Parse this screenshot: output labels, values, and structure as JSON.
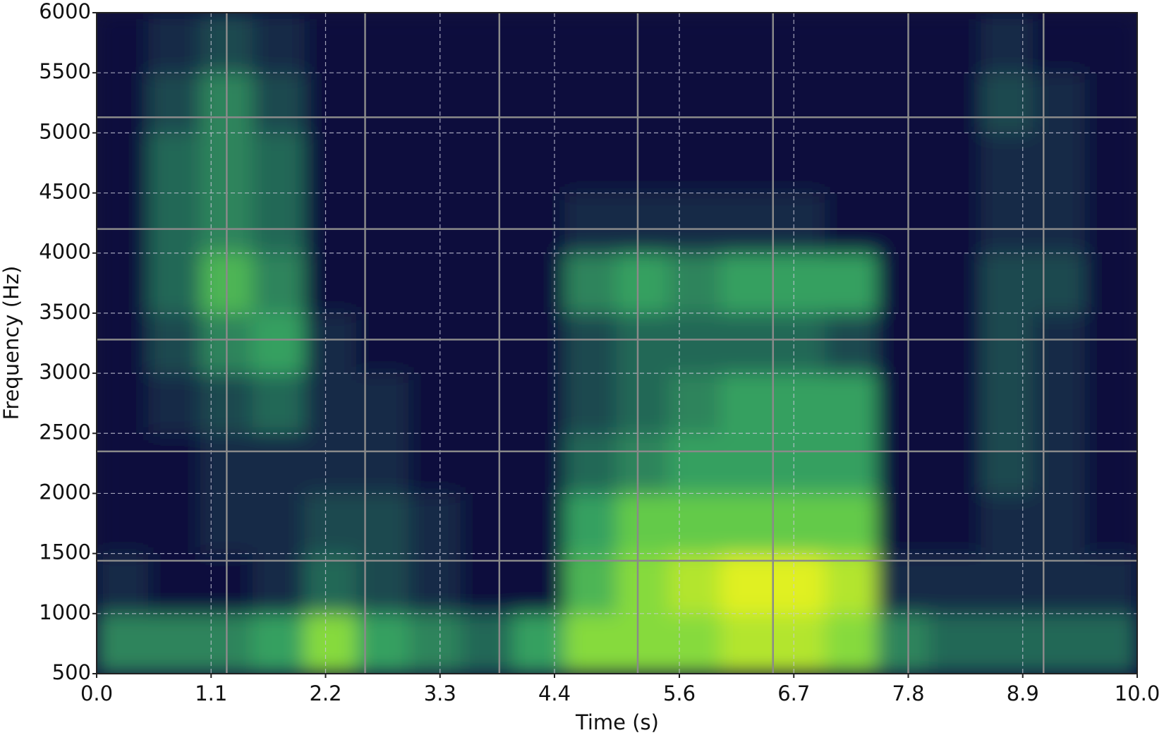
{
  "chart_data": {
    "type": "heatmap",
    "xlabel": "Time (s)",
    "ylabel": "Frequency (Hz)",
    "xlim": [
      0,
      10
    ],
    "ylim": [
      500,
      6000
    ],
    "xticks": [
      {
        "value": 0,
        "label": "0.0"
      },
      1.1,
      2.2,
      3.3,
      4.4,
      5.6,
      6.7,
      7.8,
      8.9,
      {
        "value": 10,
        "label": "10.0"
      }
    ],
    "yticks": [
      500,
      1000,
      1500,
      2000,
      2500,
      3000,
      3500,
      4000,
      4500,
      5000,
      5500,
      6000
    ],
    "grid": true,
    "extra_gridlines": {
      "x": [
        1.25,
        2.58,
        3.87,
        5.2,
        6.5,
        7.8,
        9.1
      ],
      "y": [
        1440,
        2350,
        3280,
        4200,
        5130
      ]
    },
    "x_bins": [
      0,
      0.5,
      1,
      1.5,
      2,
      2.5,
      3,
      3.5,
      4,
      4.5,
      5,
      5.5,
      6,
      6.5,
      7,
      7.5,
      8,
      8.5,
      9,
      9.5,
      10
    ],
    "y_bins": [
      500,
      1000,
      1500,
      2000,
      2500,
      3000,
      3500,
      4000,
      4500,
      5000,
      5500,
      6000
    ],
    "zlim": [
      0,
      10
    ],
    "colormap": [
      "#0c0c3c",
      "#1f5a55",
      "#36a060",
      "#6fd445",
      "#e0f020"
    ],
    "values": [
      [
        4,
        4,
        4,
        5,
        8,
        5,
        4,
        3,
        5,
        8,
        8,
        8,
        9,
        9,
        8,
        4,
        3,
        3,
        3,
        3
      ],
      [
        1,
        0,
        0,
        1,
        3,
        2,
        1,
        0,
        0,
        6,
        8,
        9,
        10,
        10,
        9,
        1,
        1,
        1,
        1,
        1
      ],
      [
        0,
        0,
        1,
        1,
        2,
        2,
        1,
        0,
        0,
        5,
        7,
        7,
        7,
        7,
        7,
        0,
        0,
        1,
        1,
        0
      ],
      [
        0,
        0,
        1,
        1,
        1,
        1,
        0,
        0,
        0,
        3,
        4,
        5,
        5,
        5,
        5,
        0,
        0,
        2,
        1,
        0
      ],
      [
        0,
        1,
        2,
        3,
        1,
        1,
        0,
        0,
        0,
        2,
        3,
        4,
        5,
        5,
        5,
        0,
        0,
        2,
        1,
        0
      ],
      [
        0,
        2,
        4,
        5,
        1,
        0,
        0,
        0,
        0,
        2,
        3,
        3,
        3,
        3,
        2,
        0,
        0,
        2,
        1,
        0
      ],
      [
        0,
        3,
        6,
        4,
        0,
        0,
        0,
        0,
        0,
        4,
        5,
        4,
        5,
        5,
        5,
        0,
        0,
        2,
        2,
        0
      ],
      [
        0,
        3,
        4,
        3,
        0,
        0,
        0,
        0,
        0,
        1,
        1,
        1,
        1,
        1,
        0,
        0,
        0,
        1,
        1,
        0
      ],
      [
        0,
        3,
        4,
        3,
        0,
        0,
        0,
        0,
        0,
        0,
        0,
        0,
        0,
        0,
        0,
        0,
        0,
        1,
        1,
        0
      ],
      [
        0,
        2,
        4,
        2,
        0,
        0,
        0,
        0,
        0,
        0,
        0,
        0,
        0,
        0,
        0,
        0,
        0,
        2,
        1,
        0
      ],
      [
        0,
        1,
        2,
        1,
        0,
        0,
        0,
        0,
        0,
        0,
        0,
        0,
        0,
        0,
        0,
        0,
        0,
        1,
        0,
        0
      ]
    ]
  }
}
